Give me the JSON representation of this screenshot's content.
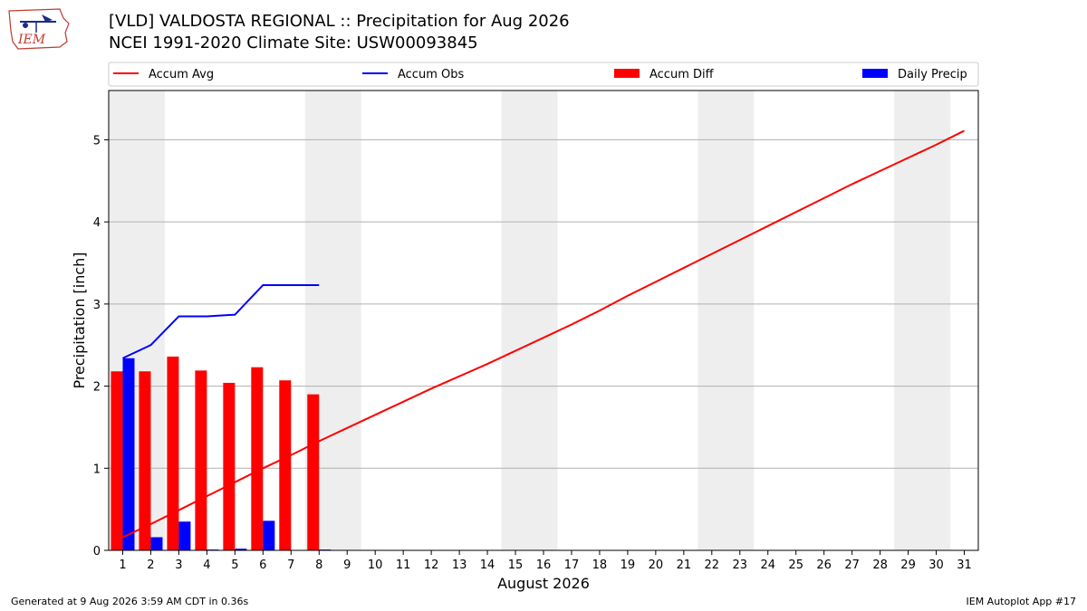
{
  "header": {
    "title": "[VLD] VALDOSTA REGIONAL :: Precipitation for Aug 2026",
    "subtitle": "NCEI 1991-2020 Climate Site: USW00093845"
  },
  "logo": {
    "text": "IEM",
    "icon": "iowa-state-outline-logo"
  },
  "footer": {
    "generated": "Generated at 9 Aug 2026 3:59 AM CDT in 0.36s",
    "app": "IEM Autoplot App #17"
  },
  "colors": {
    "avg": "#ff0000",
    "obs": "#0000ff",
    "diff": "#ff0000",
    "daily": "#0000ff",
    "weekend_band": "#eeeeee",
    "grid": "#b0b0b0"
  },
  "chart_data": {
    "type": "bar",
    "xlabel": "August 2026",
    "ylabel": "Precipitation [inch]",
    "x": [
      1,
      2,
      3,
      4,
      5,
      6,
      7,
      8,
      9,
      10,
      11,
      12,
      13,
      14,
      15,
      16,
      17,
      18,
      19,
      20,
      21,
      22,
      23,
      24,
      25,
      26,
      27,
      28,
      29,
      30,
      31
    ],
    "xlim": [
      0.5,
      31.5
    ],
    "ylim": [
      0,
      5.6
    ],
    "yticks": [
      0,
      1,
      2,
      3,
      4,
      5
    ],
    "grid": "y",
    "legend_position": "top",
    "weekend_bands": [
      [
        1,
        2
      ],
      [
        8,
        9
      ],
      [
        15,
        16
      ],
      [
        22,
        23
      ],
      [
        29,
        30
      ]
    ],
    "legend": [
      "Accum Avg",
      "Accum Obs",
      "Accum Diff",
      "Daily Precip"
    ],
    "series": [
      {
        "name": "Accum Avg",
        "type": "line",
        "x": [
          1,
          2,
          3,
          4,
          5,
          6,
          7,
          8,
          9,
          10,
          11,
          12,
          13,
          14,
          15,
          16,
          17,
          18,
          19,
          20,
          21,
          22,
          23,
          24,
          25,
          26,
          27,
          28,
          29,
          30,
          31
        ],
        "values": [
          0.16,
          0.32,
          0.49,
          0.66,
          0.83,
          1.0,
          1.16,
          1.33,
          1.49,
          1.65,
          1.81,
          1.97,
          2.12,
          2.27,
          2.43,
          2.59,
          2.75,
          2.92,
          3.1,
          3.27,
          3.44,
          3.61,
          3.78,
          3.95,
          4.12,
          4.29,
          4.46,
          4.62,
          4.78,
          4.94,
          5.11
        ]
      },
      {
        "name": "Accum Obs",
        "type": "line",
        "x": [
          1,
          2,
          3,
          4,
          5,
          6,
          7,
          8
        ],
        "values": [
          2.34,
          2.5,
          2.85,
          2.85,
          2.87,
          3.23,
          3.23,
          3.23
        ]
      },
      {
        "name": "Accum Diff",
        "type": "bar",
        "x": [
          1,
          2,
          3,
          4,
          5,
          6,
          7,
          8
        ],
        "values": [
          2.18,
          2.18,
          2.36,
          2.19,
          2.04,
          2.23,
          2.07,
          1.9
        ]
      },
      {
        "name": "Daily Precip",
        "type": "bar",
        "x": [
          1,
          2,
          3,
          4,
          5,
          6,
          7,
          8
        ],
        "values": [
          2.34,
          0.16,
          0.35,
          0.01,
          0.02,
          0.36,
          0.0,
          0.01
        ]
      }
    ]
  }
}
